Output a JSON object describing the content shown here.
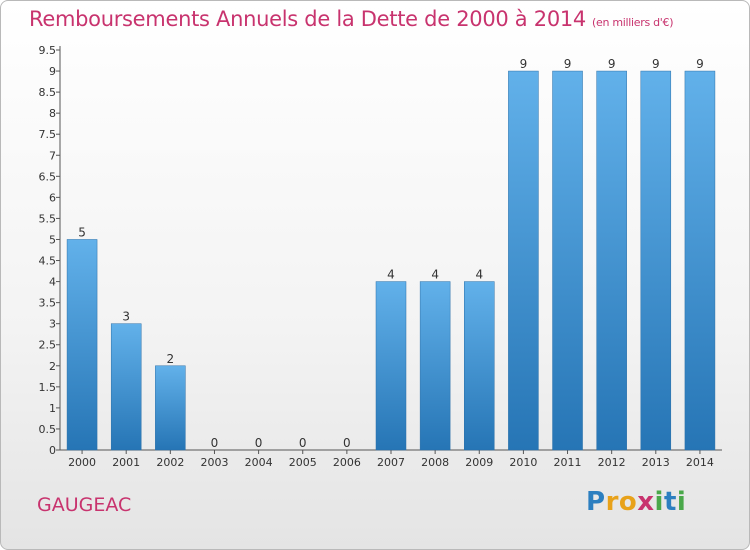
{
  "title": "Remboursements Annuels de la Dette de 2000 à 2014",
  "subtitle": "(en milliers d'€)",
  "commune": "GAUGEAC",
  "logo": {
    "letters": [
      "P",
      "r",
      "o",
      "x",
      "i",
      "t",
      "i"
    ],
    "colors": [
      "#2c7fc0",
      "#e8a21a",
      "#e8a21a",
      "#c8336e",
      "#4aa84a",
      "#2c7fc0",
      "#4aa84a"
    ]
  },
  "colors": {
    "bar_light": "#62b1ea",
    "bar_dark": "#2675b5",
    "axis": "#555555",
    "title": "#c8336e"
  },
  "chart_data": {
    "type": "bar",
    "categories": [
      "2000",
      "2001",
      "2002",
      "2003",
      "2004",
      "2005",
      "2006",
      "2007",
      "2008",
      "2009",
      "2010",
      "2011",
      "2012",
      "2013",
      "2014"
    ],
    "values": [
      5,
      3,
      2,
      0,
      0,
      0,
      0,
      4,
      4,
      4,
      9,
      9,
      9,
      9,
      9
    ],
    "value_labels": [
      "5",
      "3",
      "2",
      "0",
      "0",
      "0",
      "0",
      "4",
      "4",
      "4",
      "9",
      "9",
      "9",
      "9",
      "9"
    ],
    "y_ticks": [
      "0",
      "0.5",
      "1",
      "1.5",
      "2",
      "2.5",
      "3",
      "3.5",
      "4",
      "4.5",
      "5",
      "5.5",
      "6",
      "6.5",
      "7",
      "7.5",
      "8",
      "8.5",
      "9",
      "9.5"
    ],
    "ylim": [
      0,
      9.5
    ],
    "grid": false,
    "legend": "none"
  }
}
